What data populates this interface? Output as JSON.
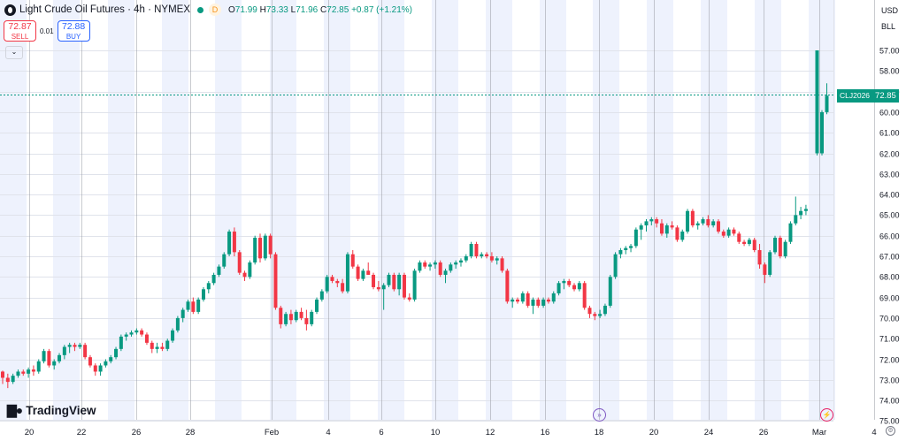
{
  "header": {
    "symbol_title": "Light Crude Oil Futures · 4h · NYMEX",
    "d_badge": "D",
    "open_label": "O",
    "open": "71.99",
    "high_label": "H",
    "high": "73.33",
    "low_label": "L",
    "low": "71.96",
    "close_label": "C",
    "close": "72.85",
    "change": "+0.87 (+1.21%)"
  },
  "trade": {
    "sell_price": "72.87",
    "sell_label": "SELL",
    "spread": "0.01",
    "buy_price": "72.88",
    "buy_label": "BUY",
    "collapse_icon": "chevron-down-icon"
  },
  "price_scale": {
    "currency": "USD",
    "unit": "BLL",
    "ticks": [
      "75.00",
      "74.00",
      "73.00",
      "72.00",
      "71.00",
      "70.00",
      "69.00",
      "68.00",
      "67.00",
      "66.00",
      "65.00",
      "64.00",
      "63.00",
      "62.00",
      "61.00",
      "60.00",
      "59.00",
      "58.00",
      "57.00"
    ],
    "last_price_symbol": "CLJ2026",
    "last_price_value": "72.85",
    "settings_icon": "gear-icon"
  },
  "time_scale": {
    "ticks": [
      "20",
      "22",
      "24",
      "26",
      "28",
      "Feb",
      "4",
      "6",
      "8",
      "10",
      "12",
      "14",
      "16",
      "18",
      "20",
      "22",
      "24",
      "26",
      "Mar",
      "4"
    ]
  },
  "branding": {
    "logo": "TradingView"
  },
  "markers": {
    "event_icon_left": "arrow-right-circle-icon",
    "event_icon_right": "lightning-circle-icon"
  },
  "colors": {
    "up": "#089981",
    "down": "#f23645",
    "session_band": "#eef2fd",
    "grid": "#e0e3eb"
  },
  "chart_data": {
    "type": "candlestick",
    "title": "Light Crude Oil Futures · 4h · NYMEX",
    "ylim": [
      56.6,
      76.0
    ],
    "yticks": [
      57,
      58,
      59,
      60,
      61,
      62,
      63,
      64,
      65,
      66,
      67,
      68,
      69,
      70,
      71,
      72,
      73,
      74,
      75
    ],
    "grid": true,
    "candles": [
      [
        59.4,
        59.45,
        58.8,
        59.1
      ],
      [
        59.1,
        59.3,
        58.6,
        58.9
      ],
      [
        58.9,
        59.3,
        58.8,
        59.2
      ],
      [
        59.2,
        59.5,
        59.1,
        59.4
      ],
      [
        59.4,
        59.5,
        59.2,
        59.3
      ],
      [
        59.3,
        59.6,
        59.1,
        59.5
      ],
      [
        59.5,
        59.7,
        59.2,
        59.4
      ],
      [
        59.4,
        60.0,
        59.3,
        59.9
      ],
      [
        59.9,
        60.5,
        59.8,
        60.4
      ],
      [
        60.4,
        60.5,
        59.6,
        59.7
      ],
      [
        59.7,
        60.0,
        59.5,
        59.9
      ],
      [
        59.9,
        60.3,
        59.8,
        60.2
      ],
      [
        60.2,
        60.7,
        60.0,
        60.6
      ],
      [
        60.6,
        60.8,
        60.3,
        60.7
      ],
      [
        60.7,
        60.8,
        60.4,
        60.6
      ],
      [
        60.6,
        60.8,
        60.5,
        60.7
      ],
      [
        60.7,
        60.8,
        60.0,
        60.1
      ],
      [
        60.1,
        60.2,
        59.6,
        59.7
      ],
      [
        59.7,
        59.8,
        59.2,
        59.4
      ],
      [
        59.4,
        59.8,
        59.2,
        59.7
      ],
      [
        59.7,
        60.0,
        59.6,
        59.9
      ],
      [
        59.9,
        60.2,
        59.8,
        60.1
      ],
      [
        60.1,
        60.6,
        60.0,
        60.5
      ],
      [
        60.5,
        61.2,
        60.4,
        61.1
      ],
      [
        61.1,
        61.3,
        60.9,
        61.2
      ],
      [
        61.2,
        61.4,
        61.1,
        61.3
      ],
      [
        61.3,
        61.5,
        61.2,
        61.4
      ],
      [
        61.4,
        61.5,
        61.1,
        61.2
      ],
      [
        61.2,
        61.3,
        60.7,
        60.8
      ],
      [
        60.8,
        60.9,
        60.3,
        60.5
      ],
      [
        60.5,
        60.8,
        60.3,
        60.6
      ],
      [
        60.6,
        60.8,
        60.4,
        60.5
      ],
      [
        60.5,
        61.0,
        60.4,
        60.9
      ],
      [
        60.9,
        61.5,
        60.8,
        61.4
      ],
      [
        61.4,
        62.1,
        61.3,
        62.0
      ],
      [
        62.0,
        62.5,
        61.8,
        62.4
      ],
      [
        62.4,
        62.9,
        62.3,
        62.8
      ],
      [
        62.8,
        63.0,
        62.2,
        62.3
      ],
      [
        62.3,
        63.0,
        62.2,
        62.9
      ],
      [
        62.9,
        63.5,
        62.8,
        63.4
      ],
      [
        63.4,
        63.8,
        63.2,
        63.7
      ],
      [
        63.7,
        64.2,
        63.6,
        64.1
      ],
      [
        64.1,
        64.6,
        64.0,
        64.5
      ],
      [
        64.5,
        65.2,
        64.4,
        65.1
      ],
      [
        65.1,
        66.3,
        65.0,
        66.2
      ],
      [
        66.2,
        66.4,
        65.0,
        65.2
      ],
      [
        65.2,
        65.3,
        64.1,
        64.2
      ],
      [
        64.2,
        64.3,
        63.8,
        64.0
      ],
      [
        64.0,
        64.8,
        63.9,
        64.7
      ],
      [
        64.7,
        66.0,
        64.6,
        65.9
      ],
      [
        65.9,
        66.1,
        64.7,
        64.9
      ],
      [
        64.9,
        66.1,
        64.8,
        66.0
      ],
      [
        66.0,
        66.1,
        64.9,
        65.1
      ],
      [
        65.1,
        65.2,
        62.4,
        62.5
      ],
      [
        62.5,
        62.6,
        61.5,
        61.7
      ],
      [
        61.7,
        62.3,
        61.6,
        62.2
      ],
      [
        62.2,
        62.4,
        61.7,
        61.9
      ],
      [
        61.9,
        62.4,
        61.8,
        62.3
      ],
      [
        62.3,
        62.5,
        61.9,
        62.0
      ],
      [
        62.0,
        62.4,
        61.4,
        61.7
      ],
      [
        61.7,
        62.4,
        61.6,
        62.3
      ],
      [
        62.3,
        63.0,
        62.2,
        62.9
      ],
      [
        62.9,
        63.4,
        62.8,
        63.3
      ],
      [
        63.3,
        64.1,
        63.2,
        64.0
      ],
      [
        64.0,
        64.1,
        63.7,
        63.8
      ],
      [
        63.8,
        63.9,
        63.5,
        63.7
      ],
      [
        63.7,
        63.9,
        63.2,
        63.3
      ],
      [
        63.3,
        65.2,
        63.2,
        65.1
      ],
      [
        65.1,
        65.3,
        64.4,
        64.5
      ],
      [
        64.5,
        64.6,
        63.8,
        63.9
      ],
      [
        63.9,
        64.4,
        63.8,
        64.3
      ],
      [
        64.3,
        64.7,
        64.1,
        64.1
      ],
      [
        64.1,
        64.2,
        63.4,
        63.5
      ],
      [
        63.5,
        63.8,
        63.3,
        63.4
      ],
      [
        63.4,
        63.7,
        62.4,
        63.6
      ],
      [
        63.6,
        64.2,
        63.5,
        64.1
      ],
      [
        64.1,
        64.2,
        63.3,
        63.4
      ],
      [
        63.4,
        64.2,
        63.1,
        64.1
      ],
      [
        64.1,
        64.2,
        62.9,
        63.0
      ],
      [
        63.0,
        63.2,
        62.8,
        62.9
      ],
      [
        62.9,
        64.4,
        62.8,
        64.3
      ],
      [
        64.3,
        64.8,
        64.2,
        64.7
      ],
      [
        64.7,
        64.8,
        64.4,
        64.5
      ],
      [
        64.5,
        64.7,
        64.3,
        64.6
      ],
      [
        64.6,
        64.8,
        64.4,
        64.7
      ],
      [
        64.7,
        64.8,
        64.0,
        64.1
      ],
      [
        64.1,
        64.4,
        63.7,
        64.3
      ],
      [
        64.3,
        64.7,
        64.2,
        64.6
      ],
      [
        64.6,
        64.8,
        64.4,
        64.7
      ],
      [
        64.7,
        64.9,
        64.5,
        64.8
      ],
      [
        64.8,
        65.1,
        64.7,
        65.0
      ],
      [
        65.0,
        65.7,
        64.9,
        65.6
      ],
      [
        65.6,
        65.7,
        64.9,
        65.0
      ],
      [
        65.0,
        65.2,
        64.9,
        65.1
      ],
      [
        65.1,
        65.2,
        64.9,
        65.0
      ],
      [
        65.0,
        65.2,
        64.7,
        64.8
      ],
      [
        64.8,
        65.0,
        64.6,
        64.9
      ],
      [
        64.9,
        65.0,
        64.2,
        64.3
      ],
      [
        64.3,
        64.4,
        62.7,
        62.8
      ],
      [
        62.8,
        63.0,
        62.5,
        62.9
      ],
      [
        62.9,
        63.0,
        62.7,
        62.8
      ],
      [
        62.8,
        63.3,
        62.7,
        63.2
      ],
      [
        63.2,
        63.3,
        62.5,
        62.6
      ],
      [
        62.6,
        63.0,
        62.2,
        62.9
      ],
      [
        62.9,
        63.0,
        62.5,
        62.6
      ],
      [
        62.6,
        63.0,
        62.5,
        62.9
      ],
      [
        62.9,
        63.0,
        62.7,
        62.8
      ],
      [
        62.8,
        63.3,
        62.7,
        63.2
      ],
      [
        63.2,
        63.8,
        63.1,
        63.7
      ],
      [
        63.7,
        63.9,
        63.4,
        63.8
      ],
      [
        63.8,
        63.9,
        63.5,
        63.6
      ],
      [
        63.6,
        63.7,
        63.3,
        63.4
      ],
      [
        63.4,
        63.8,
        63.3,
        63.7
      ],
      [
        63.7,
        63.8,
        62.4,
        62.5
      ],
      [
        62.5,
        62.6,
        62.0,
        62.2
      ],
      [
        62.2,
        62.3,
        61.9,
        62.1
      ],
      [
        62.1,
        62.4,
        62.0,
        62.2
      ],
      [
        62.2,
        62.7,
        62.1,
        62.6
      ],
      [
        62.6,
        64.1,
        62.5,
        64.0
      ],
      [
        64.0,
        65.2,
        63.9,
        65.1
      ],
      [
        65.1,
        65.4,
        64.9,
        65.3
      ],
      [
        65.3,
        65.5,
        65.1,
        65.4
      ],
      [
        65.4,
        65.6,
        65.2,
        65.5
      ],
      [
        65.5,
        66.4,
        65.4,
        66.3
      ],
      [
        66.3,
        66.6,
        65.8,
        66.5
      ],
      [
        66.5,
        66.8,
        66.2,
        66.7
      ],
      [
        66.7,
        66.9,
        66.5,
        66.8
      ],
      [
        66.8,
        66.9,
        66.4,
        66.6
      ],
      [
        66.6,
        66.8,
        66.0,
        66.1
      ],
      [
        66.1,
        66.6,
        65.9,
        66.5
      ],
      [
        66.5,
        66.7,
        66.3,
        66.4
      ],
      [
        66.4,
        66.5,
        65.7,
        65.8
      ],
      [
        65.8,
        66.3,
        65.7,
        66.2
      ],
      [
        66.2,
        67.3,
        66.1,
        67.2
      ],
      [
        67.2,
        67.3,
        66.4,
        66.5
      ],
      [
        66.5,
        66.7,
        66.3,
        66.6
      ],
      [
        66.6,
        66.9,
        66.5,
        66.8
      ],
      [
        66.8,
        67.0,
        66.4,
        66.5
      ],
      [
        66.5,
        66.8,
        66.4,
        66.7
      ],
      [
        66.7,
        66.8,
        66.1,
        66.2
      ],
      [
        66.2,
        66.3,
        65.9,
        66.0
      ],
      [
        66.0,
        66.4,
        65.9,
        66.3
      ],
      [
        66.3,
        66.4,
        66.0,
        66.1
      ],
      [
        66.1,
        66.2,
        65.6,
        65.7
      ],
      [
        65.7,
        65.8,
        65.5,
        65.6
      ],
      [
        65.6,
        65.9,
        65.5,
        65.8
      ],
      [
        65.8,
        65.9,
        65.2,
        65.3
      ],
      [
        65.3,
        65.6,
        64.4,
        64.6
      ],
      [
        64.6,
        64.7,
        63.7,
        64.1
      ],
      [
        64.1,
        65.3,
        64.0,
        65.2
      ],
      [
        65.2,
        66.0,
        65.1,
        65.9
      ],
      [
        65.9,
        66.0,
        64.9,
        65.0
      ],
      [
        65.0,
        65.8,
        64.9,
        65.7
      ],
      [
        65.7,
        66.7,
        65.6,
        66.6
      ],
      [
        66.6,
        67.9,
        66.5,
        67.0
      ],
      [
        67.0,
        67.4,
        66.8,
        67.2
      ],
      [
        67.2,
        67.5,
        67.0,
        67.3
      ],
      [
        70.0,
        75.0,
        69.9,
        75.0
      ],
      [
        70.0,
        72.1,
        69.9,
        72.0
      ],
      [
        72.0,
        73.4,
        71.9,
        72.8
      ]
    ]
  }
}
